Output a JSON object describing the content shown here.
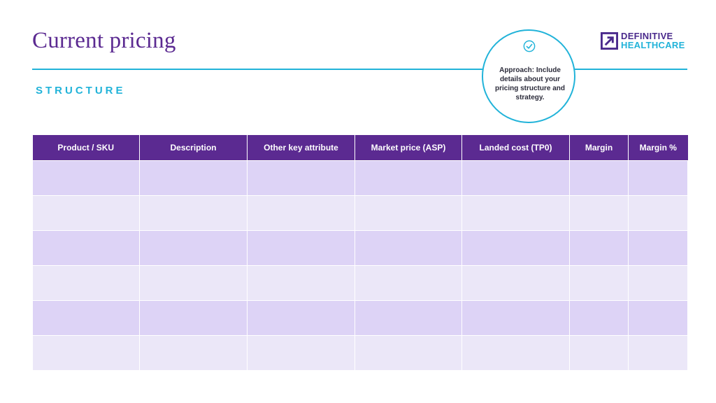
{
  "title": "Current pricing",
  "subtitle": "STRUCTURE",
  "callout": {
    "icon": "check-circle-icon",
    "text": "Approach: Include details about your pricing structure and strategy."
  },
  "logo": {
    "line1": "DEFINITIVE",
    "line2": "HEALTHCARE"
  },
  "table": {
    "headers": [
      "Product / SKU",
      "Description",
      "Other key attribute",
      "Market price (ASP)",
      "Landed cost (TP0)",
      "Margin",
      "Margin %"
    ],
    "rows": [
      [
        "",
        "",
        "",
        "",
        "",
        "",
        ""
      ],
      [
        "",
        "",
        "",
        "",
        "",
        "",
        ""
      ],
      [
        "",
        "",
        "",
        "",
        "",
        "",
        ""
      ],
      [
        "",
        "",
        "",
        "",
        "",
        "",
        ""
      ],
      [
        "",
        "",
        "",
        "",
        "",
        "",
        ""
      ],
      [
        "",
        "",
        "",
        "",
        "",
        "",
        ""
      ]
    ]
  },
  "colors": {
    "primary": "#5b2a91",
    "accent": "#21b3d9",
    "row_odd": "#ddd3f6",
    "row_even": "#ebe7f8"
  }
}
